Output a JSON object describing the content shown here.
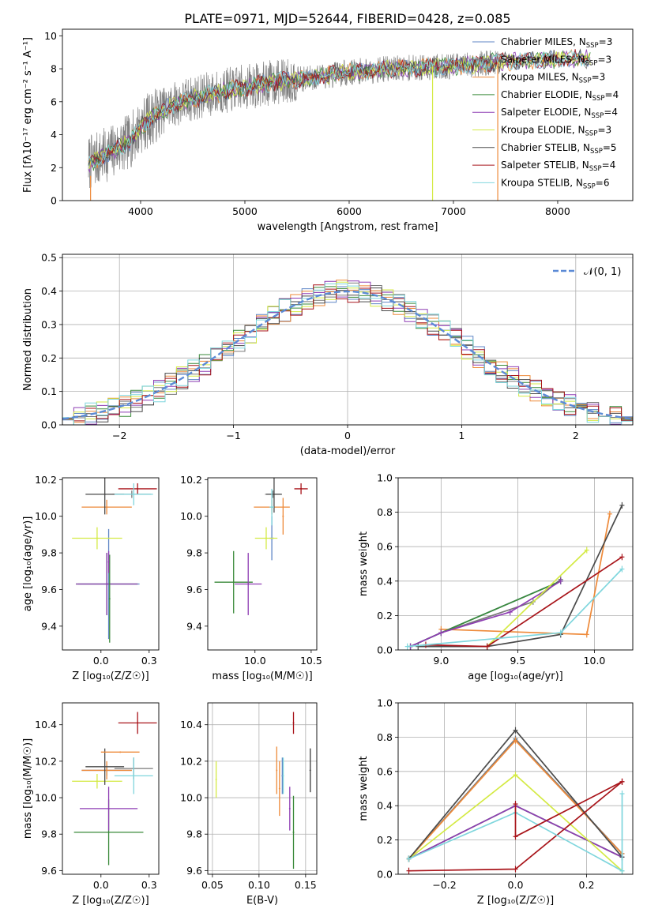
{
  "figure_title": "PLATE=0971, MJD=52644, FIBERID=0428, z=0.085",
  "models": [
    {
      "name": "Chabrier MILES",
      "nssp": "3",
      "color": "#5f86c6"
    },
    {
      "name": "Salpeter MILES",
      "nssp": "3",
      "color": "#7a7a7a"
    },
    {
      "name": "Kroupa MILES",
      "nssp": "3",
      "color": "#ee8a3a"
    },
    {
      "name": "Chabrier ELODIE",
      "nssp": "4",
      "color": "#3a8a3a"
    },
    {
      "name": "Salpeter ELODIE",
      "nssp": "4",
      "color": "#8e3db3"
    },
    {
      "name": "Kroupa ELODIE",
      "nssp": "3",
      "color": "#d4ea45"
    },
    {
      "name": "Chabrier STELIB",
      "nssp": "5",
      "color": "#4a4a4a"
    },
    {
      "name": "Salpeter STELIB",
      "nssp": "4",
      "color": "#a8141a"
    },
    {
      "name": "Kroupa STELIB",
      "nssp": "6",
      "color": "#7fd6dd"
    }
  ],
  "chart_data": [
    {
      "id": "spectrum",
      "type": "line",
      "xlabel": "wavelength [Angstrom, rest frame]",
      "ylabel": "Flux [fλ10⁻¹⁷ erg cm⁻² s⁻¹ A⁻¹]",
      "xlim": [
        3250,
        8720
      ],
      "ylim": [
        0,
        10.4
      ],
      "xticks": [
        4000,
        5000,
        6000,
        7000,
        8000
      ],
      "yticks": [
        0,
        2,
        4,
        6,
        8,
        10
      ],
      "legend": "right",
      "continuum": {
        "x": [
          3520,
          3700,
          3900,
          4000,
          4100,
          4300,
          4500,
          4700,
          5000,
          5300,
          5600,
          6000,
          6400,
          6800,
          7100,
          7400,
          7700,
          8000,
          8300
        ],
        "y": [
          2.3,
          2.9,
          3.6,
          4.5,
          5.0,
          5.8,
          6.2,
          6.5,
          6.9,
          7.2,
          7.4,
          7.8,
          8.0,
          8.1,
          8.2,
          8.4,
          8.5,
          8.6,
          8.6
        ]
      },
      "data_xrange": [
        3500,
        7450
      ],
      "model_xrange": [
        3500,
        8320
      ]
    },
    {
      "id": "residuals",
      "type": "line",
      "xlabel": "(data-model)/error",
      "ylabel": "Normed distribution",
      "xlim": [
        -2.5,
        2.5
      ],
      "ylim": [
        0,
        0.51
      ],
      "xticks": [
        -2,
        -1,
        0,
        1,
        2
      ],
      "yticks": [
        0,
        0.1,
        0.2,
        0.3,
        0.4,
        0.5
      ],
      "grid": true,
      "legend": "top-right",
      "gaussian_label": "𝒩(0, 1)",
      "gaussian": {
        "mean": 0,
        "sigma": 1,
        "color": "#5b8ad6"
      },
      "bin_width": 0.1,
      "histogram_x_start": -2.5
    },
    {
      "id": "age-metallicity",
      "type": "scatter",
      "xlabel": "Z [log₁₀(Z/Z☉)]",
      "ylabel": "age  [log₁₀(age/yr)]",
      "xlim": [
        -0.2,
        0.3
      ],
      "ylim": [
        9.27,
        10.21
      ],
      "xticks": [
        0.0,
        0.25
      ],
      "yticks": [
        9.4,
        9.6,
        9.8,
        10.0,
        10.2
      ],
      "points": [
        {
          "model": 0,
          "x": 0.04,
          "y": 9.63,
          "xerr": 0.16,
          "yerr": 0.3
        },
        {
          "model": 1,
          "x": 0.16,
          "y": 10.12,
          "xerr": 0.1,
          "yerr": 0.02
        },
        {
          "model": 2,
          "x": 0.03,
          "y": 10.05,
          "xerr": 0.13,
          "yerr": 0.04
        },
        {
          "model": 3,
          "x": 0.03,
          "y": 9.63,
          "xerr": 0.16,
          "yerr": 0.17
        },
        {
          "model": 4,
          "x": 0.03,
          "y": 9.63,
          "xerr": 0.16,
          "yerr": 0.17
        },
        {
          "model": 5,
          "x": -0.02,
          "y": 9.88,
          "xerr": 0.13,
          "yerr": 0.06
        },
        {
          "model": 6,
          "x": 0.02,
          "y": 10.12,
          "xerr": 0.1,
          "yerr": 0.11
        },
        {
          "model": 7,
          "x": 0.19,
          "y": 10.15,
          "xerr": 0.1,
          "yerr": 0.03
        },
        {
          "model": 8,
          "x": 0.17,
          "y": 10.12,
          "xerr": 0.1,
          "yerr": 0.06
        },
        {
          "model": 3,
          "x": 0.045,
          "y": 9.55,
          "xerr": 0,
          "yerr": 0.24
        },
        {
          "model": 4,
          "x": 0.04,
          "y": 9.75,
          "xerr": 0,
          "yerr": 0.06
        }
      ]
    },
    {
      "id": "age-mass",
      "type": "scatter",
      "xlabel": "mass [log₁₀(M/M☉)]",
      "ylabel": "",
      "xlim": [
        9.58,
        10.55
      ],
      "ylim": [
        9.27,
        10.21
      ],
      "xticks": [
        10.0,
        10.5
      ],
      "yticks": [
        9.4,
        9.6,
        9.8,
        10.0,
        10.2
      ],
      "points": [
        {
          "model": 0,
          "x": 10.15,
          "y": 9.88,
          "xerr": 0.02,
          "yerr": 0.12
        },
        {
          "model": 1,
          "x": 10.16,
          "y": 10.12,
          "xerr": 0.07,
          "yerr": 0.02
        },
        {
          "model": 2,
          "x": 10.15,
          "y": 10.05,
          "xerr": 0.16,
          "yerr": 0.04
        },
        {
          "model": 3,
          "x": 9.81,
          "y": 9.64,
          "xerr": 0.17,
          "yerr": 0.17
        },
        {
          "model": 4,
          "x": 9.94,
          "y": 9.63,
          "xerr": 0.12,
          "yerr": 0.17
        },
        {
          "model": 5,
          "x": 10.1,
          "y": 9.88,
          "xerr": 0.1,
          "yerr": 0.06
        },
        {
          "model": 6,
          "x": 10.17,
          "y": 10.12,
          "xerr": 0.07,
          "yerr": 0.1
        },
        {
          "model": 7,
          "x": 10.41,
          "y": 10.15,
          "xerr": 0.06,
          "yerr": 0.03
        },
        {
          "model": 8,
          "x": 10.15,
          "y": 10.05,
          "xerr": 0.02,
          "yerr": 0.1
        },
        {
          "model": 2,
          "x": 10.25,
          "y": 10.0,
          "xerr": 0,
          "yerr": 0.1
        }
      ]
    },
    {
      "id": "mass-weight-age",
      "type": "line",
      "xlabel": "age  [log₁₀(age/yr)]",
      "ylabel": "mass weight",
      "xlim": [
        8.72,
        10.25
      ],
      "ylim": [
        0,
        1.0
      ],
      "xticks": [
        9.0,
        9.5,
        10.0
      ],
      "yticks": [
        0.0,
        0.2,
        0.4,
        0.6,
        0.8,
        1.0
      ],
      "grid": true,
      "series": [
        {
          "model": 0,
          "x": [
            8.8,
            9.0,
            9.78
          ],
          "y": [
            0.02,
            0.1,
            0.4
          ]
        },
        {
          "model": 1,
          "x": [
            8.8,
            9.0,
            9.6,
            9.78
          ],
          "y": [
            0.02,
            0.1,
            0.28,
            0.41
          ]
        },
        {
          "model": 2,
          "x": [
            9.0,
            9.95,
            10.1
          ],
          "y": [
            0.12,
            0.09,
            0.79
          ]
        },
        {
          "model": 3,
          "x": [
            8.8,
            9.0,
            9.78
          ],
          "y": [
            0.02,
            0.1,
            0.4
          ]
        },
        {
          "model": 4,
          "x": [
            8.8,
            9.0,
            9.45,
            9.78
          ],
          "y": [
            0.02,
            0.1,
            0.22,
            0.4
          ]
        },
        {
          "model": 5,
          "x": [
            9.3,
            9.95
          ],
          "y": [
            0.02,
            0.58
          ]
        },
        {
          "model": 6,
          "x": [
            8.85,
            9.3,
            9.78,
            10.18
          ],
          "y": [
            0.02,
            0.02,
            0.09,
            0.84
          ]
        },
        {
          "model": 7,
          "x": [
            8.9,
            9.3,
            10.18
          ],
          "y": [
            0.03,
            0.02,
            0.54
          ]
        },
        {
          "model": 8,
          "x": [
            8.78,
            9.78,
            10.18
          ],
          "y": [
            0.02,
            0.1,
            0.47
          ]
        }
      ]
    },
    {
      "id": "mass-metallicity",
      "type": "scatter",
      "xlabel": "Z [log₁₀(Z/Z☉)]",
      "ylabel": "mass [log₁₀(M/M☉)]",
      "xlim": [
        -0.2,
        0.3
      ],
      "ylim": [
        9.58,
        10.52
      ],
      "xticks": [
        0.0,
        0.25
      ],
      "yticks": [
        9.6,
        9.8,
        10.0,
        10.2,
        10.4
      ],
      "points": [
        {
          "model": 0,
          "x": 0.03,
          "y": 10.15,
          "xerr": 0.13,
          "yerr": 0.03
        },
        {
          "model": 1,
          "x": 0.17,
          "y": 10.16,
          "xerr": 0.1,
          "yerr": 0.06
        },
        {
          "model": 2,
          "x": 0.03,
          "y": 10.15,
          "xerr": 0.13,
          "yerr": 0.05
        },
        {
          "model": 3,
          "x": 0.04,
          "y": 9.81,
          "xerr": 0.18,
          "yerr": 0.18
        },
        {
          "model": 4,
          "x": 0.04,
          "y": 9.94,
          "xerr": 0.15,
          "yerr": 0.12
        },
        {
          "model": 5,
          "x": -0.02,
          "y": 10.09,
          "xerr": 0.13,
          "yerr": 0.04
        },
        {
          "model": 6,
          "x": 0.02,
          "y": 10.17,
          "xerr": 0.1,
          "yerr": 0.1
        },
        {
          "model": 7,
          "x": 0.19,
          "y": 10.41,
          "xerr": 0.1,
          "yerr": 0.06
        },
        {
          "model": 8,
          "x": 0.17,
          "y": 10.12,
          "xerr": 0.1,
          "yerr": 0.1
        },
        {
          "model": 2,
          "x": 0.1,
          "y": 10.25,
          "xerr": 0.1,
          "yerr": 0
        }
      ]
    },
    {
      "id": "mass-extinction",
      "type": "scatter",
      "xlabel": "E(B-V)",
      "ylabel": "",
      "xlim": [
        0.045,
        0.162
      ],
      "ylim": [
        9.58,
        10.52
      ],
      "xticks": [
        0.05,
        0.1,
        0.15
      ],
      "yticks": [
        9.6,
        9.8,
        10.0,
        10.2,
        10.4
      ],
      "grid": true,
      "points": [
        {
          "model": 0,
          "x": 0.125,
          "y": 10.12,
          "xerr": 0,
          "yerr": 0.1
        },
        {
          "model": 1,
          "x": 0.155,
          "y": 10.15,
          "xerr": 0,
          "yerr": 0.12
        },
        {
          "model": 2,
          "x": 0.122,
          "y": 10.05,
          "xerr": 0,
          "yerr": 0.15
        },
        {
          "model": 3,
          "x": 0.137,
          "y": 9.81,
          "xerr": 0,
          "yerr": 0.2
        },
        {
          "model": 4,
          "x": 0.133,
          "y": 9.94,
          "xerr": 0,
          "yerr": 0.12
        },
        {
          "model": 5,
          "x": 0.054,
          "y": 10.1,
          "xerr": 0,
          "yerr": 0.1
        },
        {
          "model": 6,
          "x": 0.155,
          "y": 10.15,
          "xerr": 0,
          "yerr": 0.12
        },
        {
          "model": 7,
          "x": 0.137,
          "y": 10.41,
          "xerr": 0,
          "yerr": 0.06
        },
        {
          "model": 8,
          "x": 0.126,
          "y": 10.12,
          "xerr": 0,
          "yerr": 0.1
        },
        {
          "model": 2,
          "x": 0.119,
          "y": 10.15,
          "xerr": 0,
          "yerr": 0.13
        }
      ]
    },
    {
      "id": "mass-weight-metallicity",
      "type": "line",
      "xlabel": "Z [log₁₀(Z/Z☉)]",
      "ylabel": "mass weight",
      "xlim": [
        -0.33,
        0.33
      ],
      "ylim": [
        0,
        1.0
      ],
      "xticks": [
        -0.2,
        0.0,
        0.2
      ],
      "yticks": [
        0.0,
        0.2,
        0.4,
        0.6,
        0.8,
        1.0
      ],
      "grid": true,
      "series": [
        {
          "model": 0,
          "x": [
            -0.3,
            0.0,
            0.3
          ],
          "y": [
            0.09,
            0.79,
            0.12
          ]
        },
        {
          "model": 1,
          "x": [
            -0.3,
            0.0,
            0.3
          ],
          "y": [
            0.09,
            0.79,
            0.12
          ]
        },
        {
          "model": 2,
          "x": [
            -0.3,
            0.0,
            0.3
          ],
          "y": [
            0.09,
            0.78,
            0.12
          ]
        },
        {
          "model": 3,
          "x": [
            -0.3,
            0.0,
            0.3
          ],
          "y": [
            0.09,
            0.4,
            0.1
          ]
        },
        {
          "model": 4,
          "x": [
            -0.3,
            0.0,
            0.3
          ],
          "y": [
            0.09,
            0.4,
            0.1
          ]
        },
        {
          "model": 5,
          "x": [
            -0.3,
            0.0,
            0.3
          ],
          "y": [
            0.09,
            0.58,
            0.02
          ]
        },
        {
          "model": 6,
          "x": [
            -0.3,
            0.0,
            0.3
          ],
          "y": [
            0.09,
            0.84,
            0.1
          ]
        },
        {
          "model": 7,
          "x": [
            -0.3,
            0.0,
            0.3
          ],
          "y": [
            0.02,
            0.03,
            0.54
          ]
        },
        {
          "model": 8,
          "x": [
            -0.3,
            0.0,
            0.3
          ],
          "y": [
            0.09,
            0.36,
            0.02
          ]
        },
        {
          "model": 7,
          "x": [
            0.0,
            0.0,
            0.3
          ],
          "y": [
            0.41,
            0.22,
            0.54
          ]
        },
        {
          "model": 8,
          "x": [
            0.3,
            0.3
          ],
          "y": [
            0.02,
            0.47
          ]
        }
      ]
    }
  ]
}
